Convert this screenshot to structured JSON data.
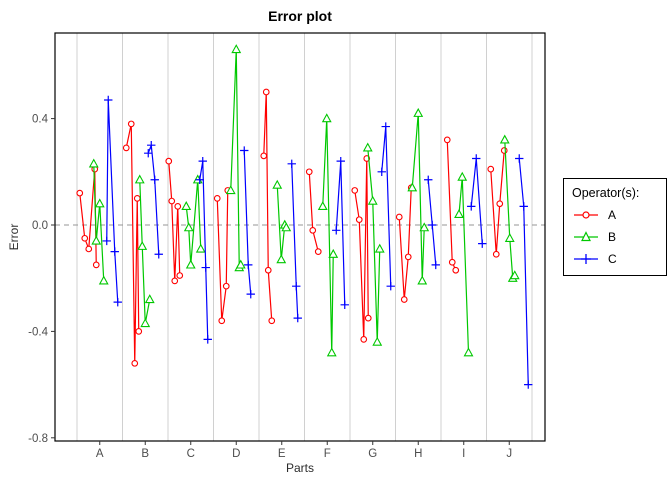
{
  "title": "Error plot",
  "axes": {
    "x": {
      "label": "Parts",
      "ticks": [
        "A",
        "B",
        "C",
        "D",
        "E",
        "F",
        "G",
        "H",
        "I",
        "J"
      ]
    },
    "y": {
      "label": "Error",
      "ticks": [
        "-0.8",
        "-0.4",
        "0.0",
        "0.4"
      ],
      "tick_values": [
        -0.8,
        -0.4,
        0.0,
        0.4
      ]
    }
  },
  "legend": {
    "title": "Operator(s):",
    "items": [
      {
        "label": "A",
        "color": "#ff0000",
        "marker": "circle"
      },
      {
        "label": "B",
        "color": "#00c800",
        "marker": "triangle"
      },
      {
        "label": "C",
        "color": "#0000ff",
        "marker": "plus"
      }
    ]
  },
  "colors": {
    "grid": "#d0d0d0",
    "zero_line": "#969696",
    "panel_border": "#000000",
    "tick_text": "#4d4d4d",
    "title_text": "#000000"
  },
  "chart_data": {
    "type": "line",
    "title": "Error plot",
    "xlabel": "Parts",
    "ylabel": "Error",
    "ylim": [
      -0.8,
      0.72
    ],
    "zero_line_y": 0.0,
    "grid": "vertical-separators",
    "legend_position": "right",
    "categories": [
      "A",
      "B",
      "C",
      "D",
      "E",
      "F",
      "G",
      "H",
      "I",
      "J"
    ],
    "series": [
      {
        "name": "A",
        "color": "#ff0000",
        "marker": "circle",
        "points": [
          {
            "part": "A",
            "dx": -20,
            "v": 0.12
          },
          {
            "part": "A",
            "dx": -15,
            "v": -0.05
          },
          {
            "part": "A",
            "dx": -11,
            "v": -0.09
          },
          {
            "part": "A",
            "dx": -5,
            "v": 0.21
          },
          {
            "part": "A",
            "dx": -3.5,
            "v": -0.15
          },
          {
            "part": "B",
            "dx": -19,
            "v": 0.29
          },
          {
            "part": "B",
            "dx": -14,
            "v": 0.38
          },
          {
            "part": "B",
            "dx": -10.5,
            "v": -0.52
          },
          {
            "part": "B",
            "dx": -8,
            "v": 0.1
          },
          {
            "part": "B",
            "dx": -6.5,
            "v": -0.4
          },
          {
            "part": "C",
            "dx": -22,
            "v": 0.24
          },
          {
            "part": "C",
            "dx": -19,
            "v": 0.09
          },
          {
            "part": "C",
            "dx": -16,
            "v": -0.21
          },
          {
            "part": "C",
            "dx": -13,
            "v": 0.07
          },
          {
            "part": "C",
            "dx": -11,
            "v": -0.19
          },
          {
            "part": "D",
            "dx": -19,
            "v": 0.1
          },
          {
            "part": "D",
            "dx": -14.5,
            "v": -0.36
          },
          {
            "part": "D",
            "dx": -10,
            "v": -0.23
          },
          {
            "part": "D",
            "dx": -8.5,
            "v": 0.13
          },
          {
            "part": "E",
            "dx": -18,
            "v": 0.26
          },
          {
            "part": "E",
            "dx": -15.5,
            "v": 0.5
          },
          {
            "part": "E",
            "dx": -13.5,
            "v": -0.17
          },
          {
            "part": "E",
            "dx": -10,
            "v": -0.36
          },
          {
            "part": "F",
            "dx": -18,
            "v": 0.2
          },
          {
            "part": "F",
            "dx": -14.5,
            "v": -0.02
          },
          {
            "part": "F",
            "dx": -9,
            "v": -0.1
          },
          {
            "part": "G",
            "dx": -18,
            "v": 0.13
          },
          {
            "part": "G",
            "dx": -13.5,
            "v": 0.02
          },
          {
            "part": "G",
            "dx": -9,
            "v": -0.43
          },
          {
            "part": "G",
            "dx": -6,
            "v": 0.25
          },
          {
            "part": "G",
            "dx": -4.5,
            "v": -0.35
          },
          {
            "part": "H",
            "dx": -19,
            "v": 0.03
          },
          {
            "part": "H",
            "dx": -14,
            "v": -0.28
          },
          {
            "part": "H",
            "dx": -10,
            "v": -0.12
          },
          {
            "part": "H",
            "dx": -7,
            "v": 0.14
          },
          {
            "part": "I",
            "dx": -16.5,
            "v": 0.32
          },
          {
            "part": "I",
            "dx": -11.5,
            "v": -0.14
          },
          {
            "part": "I",
            "dx": -8,
            "v": -0.17
          },
          {
            "part": "J",
            "dx": -18.5,
            "v": 0.21
          },
          {
            "part": "J",
            "dx": -13,
            "v": -0.11
          },
          {
            "part": "J",
            "dx": -9.5,
            "v": 0.08
          },
          {
            "part": "J",
            "dx": -5,
            "v": 0.28
          }
        ]
      },
      {
        "name": "B",
        "color": "#00c800",
        "marker": "triangle",
        "points": [
          {
            "part": "A",
            "dx": -6,
            "v": 0.23
          },
          {
            "part": "A",
            "dx": -3.5,
            "v": -0.06
          },
          {
            "part": "A",
            "dx": 0,
            "v": 0.08
          },
          {
            "part": "A",
            "dx": 4,
            "v": -0.21
          },
          {
            "part": "B",
            "dx": -5.5,
            "v": 0.17
          },
          {
            "part": "B",
            "dx": -3,
            "v": -0.08
          },
          {
            "part": "B",
            "dx": 0,
            "v": -0.37
          },
          {
            "part": "B",
            "dx": 4.5,
            "v": -0.28
          },
          {
            "part": "C",
            "dx": -4.5,
            "v": 0.07
          },
          {
            "part": "C",
            "dx": -2,
            "v": -0.01
          },
          {
            "part": "C",
            "dx": 0,
            "v": -0.15
          },
          {
            "part": "C",
            "dx": 7,
            "v": 0.17
          },
          {
            "part": "C",
            "dx": 10,
            "v": -0.09
          },
          {
            "part": "D",
            "dx": -5.5,
            "v": 0.13
          },
          {
            "part": "D",
            "dx": 0,
            "v": 0.66
          },
          {
            "part": "D",
            "dx": 3,
            "v": -0.16
          },
          {
            "part": "D",
            "dx": 4.5,
            "v": -0.15
          },
          {
            "part": "E",
            "dx": -4.5,
            "v": 0.15
          },
          {
            "part": "E",
            "dx": -0.5,
            "v": -0.13
          },
          {
            "part": "E",
            "dx": 3,
            "v": 0.0
          },
          {
            "part": "E",
            "dx": 4.5,
            "v": -0.01
          },
          {
            "part": "F",
            "dx": -4.5,
            "v": 0.07
          },
          {
            "part": "F",
            "dx": -0.5,
            "v": 0.4
          },
          {
            "part": "F",
            "dx": 4.5,
            "v": -0.48
          },
          {
            "part": "F",
            "dx": 6,
            "v": -0.11
          },
          {
            "part": "G",
            "dx": -5,
            "v": 0.29
          },
          {
            "part": "G",
            "dx": 0,
            "v": 0.09
          },
          {
            "part": "G",
            "dx": 4.5,
            "v": -0.44
          },
          {
            "part": "G",
            "dx": 7,
            "v": -0.09
          },
          {
            "part": "H",
            "dx": -6,
            "v": 0.14
          },
          {
            "part": "H",
            "dx": 0,
            "v": 0.42
          },
          {
            "part": "H",
            "dx": 4,
            "v": -0.21
          },
          {
            "part": "H",
            "dx": 6,
            "v": -0.01
          },
          {
            "part": "I",
            "dx": -4.75,
            "v": 0.04
          },
          {
            "part": "I",
            "dx": -1.5,
            "v": 0.18
          },
          {
            "part": "I",
            "dx": 4.75,
            "v": -0.48
          },
          {
            "part": "J",
            "dx": -4.5,
            "v": 0.32
          },
          {
            "part": "J",
            "dx": 0.5,
            "v": -0.05
          },
          {
            "part": "J",
            "dx": 3.5,
            "v": -0.2
          },
          {
            "part": "J",
            "dx": 5.5,
            "v": -0.19
          }
        ]
      },
      {
        "name": "C",
        "color": "#0000ff",
        "marker": "plus",
        "points": [
          {
            "part": "A",
            "dx": 7,
            "v": -0.06
          },
          {
            "part": "A",
            "dx": 8.5,
            "v": 0.47
          },
          {
            "part": "A",
            "dx": 15,
            "v": -0.1
          },
          {
            "part": "A",
            "dx": 18,
            "v": -0.29
          },
          {
            "part": "B",
            "dx": 3,
            "v": 0.27
          },
          {
            "part": "B",
            "dx": 6,
            "v": 0.3
          },
          {
            "part": "B",
            "dx": 9.5,
            "v": 0.17
          },
          {
            "part": "B",
            "dx": 13.5,
            "v": -0.11
          },
          {
            "part": "C",
            "dx": 9,
            "v": 0.17
          },
          {
            "part": "C",
            "dx": 12,
            "v": 0.24
          },
          {
            "part": "C",
            "dx": 15,
            "v": -0.16
          },
          {
            "part": "C",
            "dx": 17,
            "v": -0.43
          },
          {
            "part": "D",
            "dx": 8,
            "v": 0.28
          },
          {
            "part": "D",
            "dx": 12,
            "v": -0.15
          },
          {
            "part": "D",
            "dx": 14.5,
            "v": -0.26
          },
          {
            "part": "E",
            "dx": 10,
            "v": 0.23
          },
          {
            "part": "E",
            "dx": 14.5,
            "v": -0.23
          },
          {
            "part": "E",
            "dx": 16,
            "v": -0.35
          },
          {
            "part": "F",
            "dx": 9,
            "v": -0.02
          },
          {
            "part": "F",
            "dx": 13.5,
            "v": 0.24
          },
          {
            "part": "F",
            "dx": 17.5,
            "v": -0.3
          },
          {
            "part": "G",
            "dx": 9,
            "v": 0.2
          },
          {
            "part": "G",
            "dx": 13,
            "v": 0.37
          },
          {
            "part": "G",
            "dx": 18,
            "v": -0.23
          },
          {
            "part": "H",
            "dx": 10,
            "v": 0.17
          },
          {
            "part": "H",
            "dx": 14,
            "v": 0.0
          },
          {
            "part": "H",
            "dx": 17.5,
            "v": -0.15
          },
          {
            "part": "I",
            "dx": 7.5,
            "v": 0.07
          },
          {
            "part": "I",
            "dx": 12.5,
            "v": 0.25
          },
          {
            "part": "I",
            "dx": 18.5,
            "v": -0.07
          },
          {
            "part": "J",
            "dx": 10,
            "v": 0.25
          },
          {
            "part": "J",
            "dx": 14.5,
            "v": 0.07
          },
          {
            "part": "J",
            "dx": 19,
            "v": -0.6
          }
        ]
      }
    ]
  }
}
